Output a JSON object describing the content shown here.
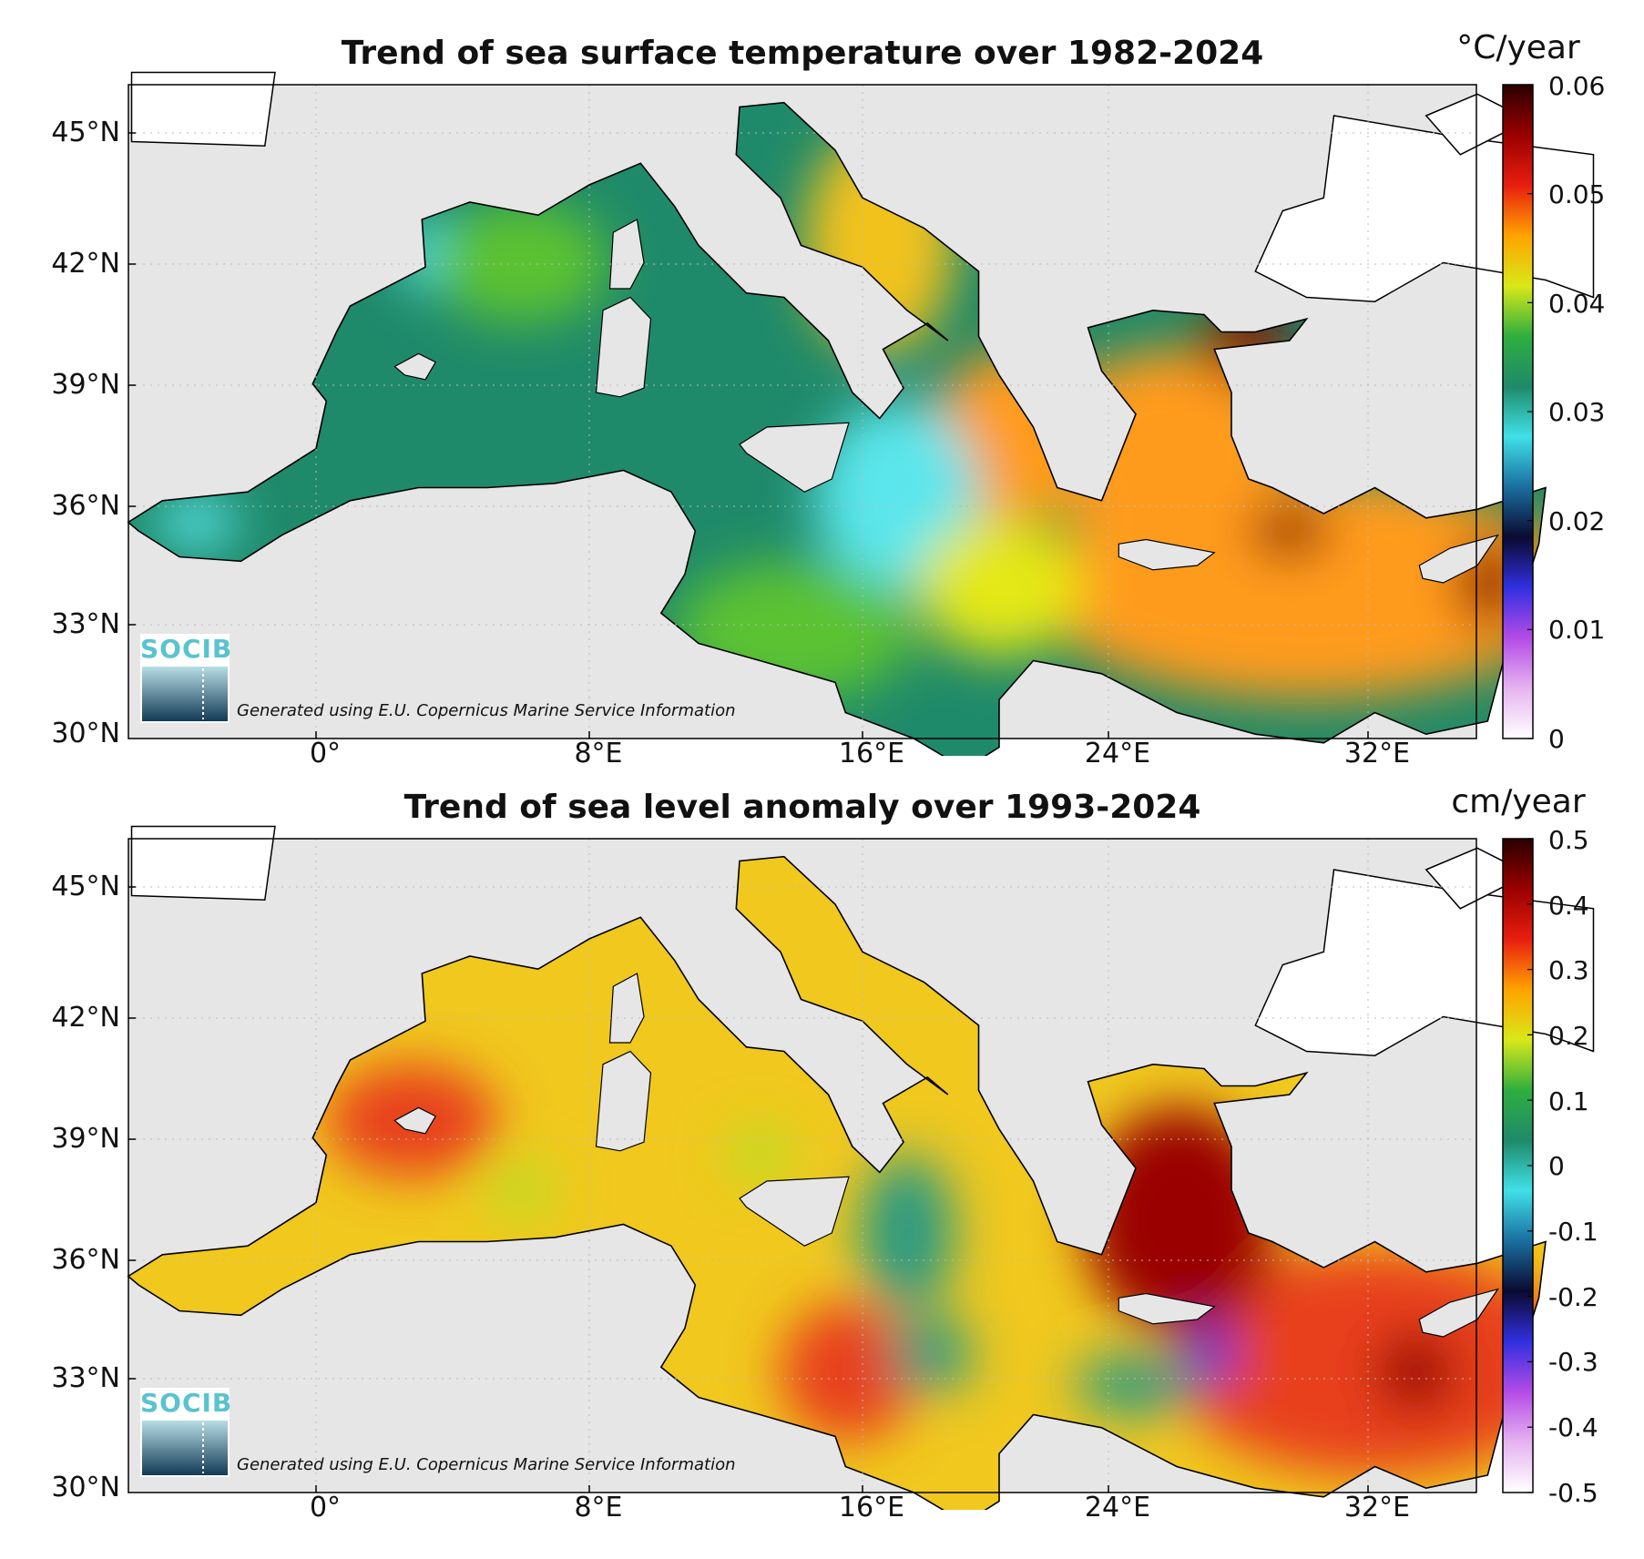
{
  "maps": [
    {
      "title": "Trend of sea surface temperature over 1982-2024",
      "unit": "°C/year",
      "colorbar": {
        "ticks": [
          "0.06",
          "0.05",
          "0.04",
          "0.03",
          "0.02",
          "0.01",
          "0"
        ],
        "min": 0,
        "max": 0.06,
        "colors": [
          "#ffffff",
          "#e6b3f0",
          "#b44be6",
          "#3030e0",
          "#0a0a30",
          "#1a6fa0",
          "#40e0e8",
          "#1f8a6a",
          "#2fae3f",
          "#d8e81a",
          "#ffa300",
          "#e81e10",
          "#9a0000",
          "#2a0000"
        ]
      },
      "lat_ticks": [
        "45°N",
        "42°N",
        "39°N",
        "36°N",
        "33°N",
        "30°N"
      ],
      "lon_ticks": [
        "0°",
        "8°E",
        "16°E",
        "24°E",
        "32°E"
      ],
      "credit": "Generated using E.U. Copernicus Marine Service Information",
      "logo": "SOCIB",
      "field_colors": {
        "base": "#1f8a6a",
        "east": "#ff9b1a",
        "adriatic": "#f2c21a",
        "hot": "#8c0000",
        "cool": "#5ae6ec",
        "green": "#5cc230",
        "yellow": "#e4e817"
      }
    },
    {
      "title": "Trend of sea level anomaly over 1993-2024",
      "unit": "cm/year",
      "colorbar": {
        "ticks": [
          "0.5",
          "0.4",
          "0.3",
          "0.2",
          "0.1",
          "0",
          "-0.1",
          "-0.2",
          "-0.3",
          "-0.4",
          "-0.5"
        ],
        "min": -0.5,
        "max": 0.5,
        "colors": [
          "#ffffff",
          "#e6b3f0",
          "#b44be6",
          "#3030e0",
          "#0a0a30",
          "#1a6fa0",
          "#40e0e8",
          "#1f8a6a",
          "#2fae3f",
          "#d8e81a",
          "#ffa300",
          "#e81e10",
          "#9a0000",
          "#2a0000"
        ]
      },
      "lat_ticks": [
        "45°N",
        "42°N",
        "39°N",
        "36°N",
        "33°N",
        "30°N"
      ],
      "lon_ticks": [
        "0°",
        "8°E",
        "16°E",
        "24°E",
        "32°E"
      ],
      "credit": "Generated using E.U. Copernicus Marine Service Information",
      "logo": "SOCIB",
      "field_colors": {
        "base": "#f0c81e",
        "east": "#e8401a",
        "adriatic": "#e8d81e",
        "hot": "#9a0000",
        "cool": "#2a9a82",
        "green": "#b8e020",
        "yellow": "#f4e020",
        "low": "#3030e0"
      }
    }
  ]
}
